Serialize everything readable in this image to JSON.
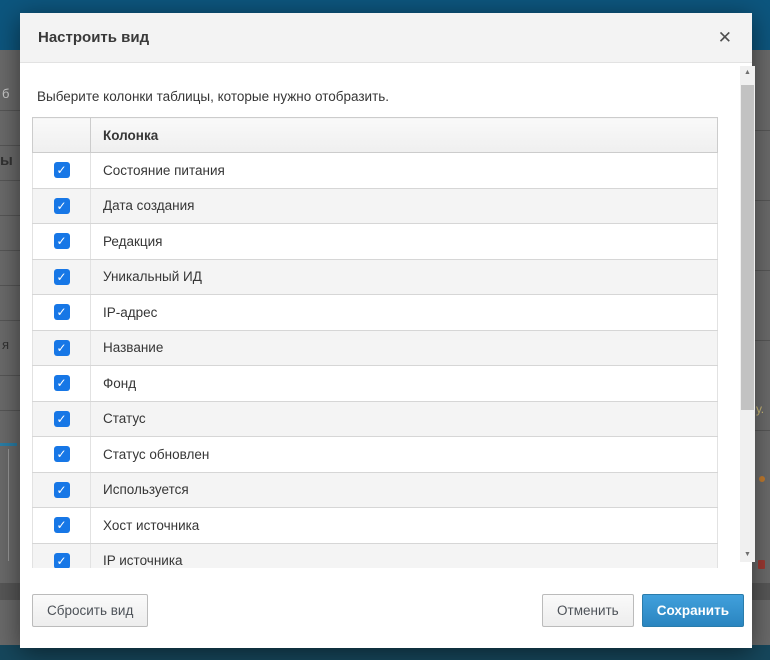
{
  "modal": {
    "title": "Настроить вид",
    "description": "Выберите колонки таблицы, которые нужно отобразить.",
    "table": {
      "header": "Колонка",
      "rows": [
        {
          "label": "Состояние питания",
          "checked": true
        },
        {
          "label": "Дата создания",
          "checked": true
        },
        {
          "label": "Редакция",
          "checked": true
        },
        {
          "label": "Уникальный ИД",
          "checked": true
        },
        {
          "label": "IP-адрес",
          "checked": true
        },
        {
          "label": "Название",
          "checked": true
        },
        {
          "label": "Фонд",
          "checked": true
        },
        {
          "label": "Статус",
          "checked": true
        },
        {
          "label": "Статус обновлен",
          "checked": true
        },
        {
          "label": "Используется",
          "checked": true
        },
        {
          "label": "Хост источника",
          "checked": true
        },
        {
          "label": "IP источника",
          "checked": true
        }
      ]
    },
    "footer": {
      "reset_label": "Сбросить вид",
      "cancel_label": "Отменить",
      "save_label": "Сохранить"
    }
  },
  "icons": {
    "close": "✕",
    "check": "✓",
    "scroll_up": "▲",
    "scroll_down": "▼"
  },
  "backdrop": {
    "fragments": {
      "f1": "б",
      "f2": "ы",
      "f3": "я",
      "f4": "у."
    }
  },
  "colors": {
    "checkbox_blue": "#1777E6",
    "primary_button_blue": "#2E8CC7",
    "page_header_teal": "#0D567E",
    "stripe_gray": "#F4F4F4"
  }
}
